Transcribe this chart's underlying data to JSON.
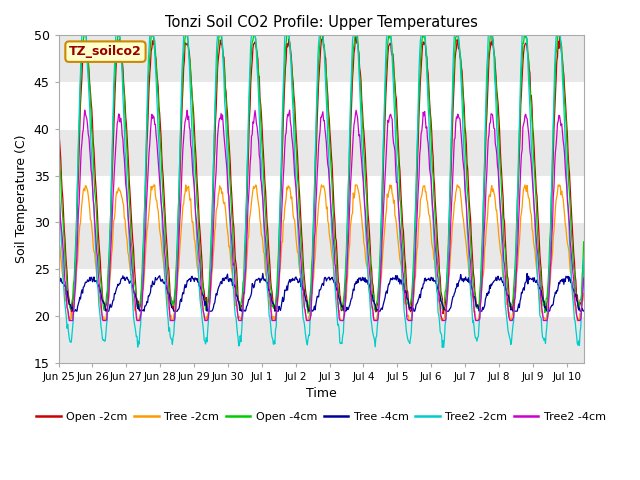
{
  "title": "Tonzi Soil CO2 Profile: Upper Temperatures",
  "xlabel": "Time",
  "ylabel": "Soil Temperature (C)",
  "ylim": [
    15,
    50
  ],
  "label_box_text": "TZ_soilco2",
  "series": [
    {
      "label": "Open -2cm",
      "color": "#cc0000"
    },
    {
      "label": "Tree -2cm",
      "color": "#ff9900"
    },
    {
      "label": "Open -4cm",
      "color": "#00cc00"
    },
    {
      "label": "Tree -4cm",
      "color": "#000099"
    },
    {
      "label": "Tree2 -2cm",
      "color": "#00cccc"
    },
    {
      "label": "Tree2 -4cm",
      "color": "#cc00cc"
    }
  ],
  "tick_labels": [
    "Jun 25",
    "Jun 26",
    "Jun 27",
    "Jun 28",
    "Jun 29",
    "Jun 30",
    "Jul 1",
    "Jul 2",
    "Jul 3",
    "Jul 4",
    "Jul 5",
    "Jul 6",
    "Jul 7",
    "Jul 8",
    "Jul 9",
    "Jul 10"
  ],
  "background_color": "#ffffff",
  "plot_bg_color": "#ffffff",
  "band_colors": [
    "#e8e8e8",
    "#ffffff"
  ],
  "grid_color": "#ffffff",
  "n_days": 15.5,
  "samples_per_day": 48,
  "yticks": [
    15,
    20,
    25,
    30,
    35,
    40,
    45,
    50
  ]
}
